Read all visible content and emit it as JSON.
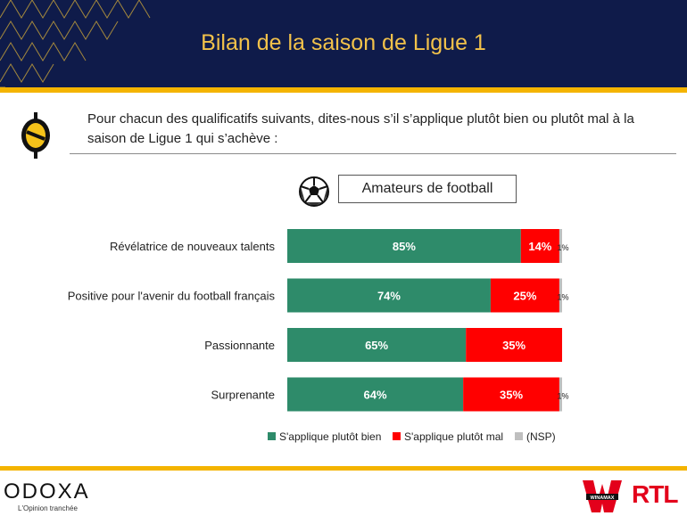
{
  "header": {
    "title": "Bilan de la saison de Ligue 1"
  },
  "question": "Pour chacun des qualificatifs suivants, dites-nous s’il s’applique plutôt bien ou plutôt mal à la saison de Ligue 1 qui s’achève :",
  "audience_label": "Amateurs de football",
  "footer": {
    "logo_text": "ODOXA",
    "logo_tagline": "L'Opinion tranchée",
    "sponsor1": "WINAMAX",
    "sponsor2": "RTL"
  },
  "chart_data": {
    "type": "bar",
    "orientation": "horizontal",
    "stacked": true,
    "categories": [
      "Révélatrice de nouveaux talents",
      "Positive pour l'avenir du football français",
      "Passionnante",
      "Surprenante"
    ],
    "series": [
      {
        "name": "S'applique plutôt bien",
        "values": [
          85,
          74,
          65,
          64
        ],
        "labels": [
          "85%",
          "74%",
          "65%",
          "64%"
        ],
        "color": "#2e8b6a"
      },
      {
        "name": "S'applique plutôt mal",
        "values": [
          14,
          25,
          35,
          35
        ],
        "labels": [
          "14%",
          "25%",
          "35%",
          "35%"
        ],
        "color": "#ff0000"
      },
      {
        "name": "(NSP)",
        "values": [
          1,
          1,
          0,
          1
        ],
        "labels": [
          "1%",
          "1%",
          "",
          "1%"
        ],
        "color": "#bfbfbf"
      }
    ],
    "xlim": [
      0,
      100
    ],
    "legend_position": "bottom"
  }
}
